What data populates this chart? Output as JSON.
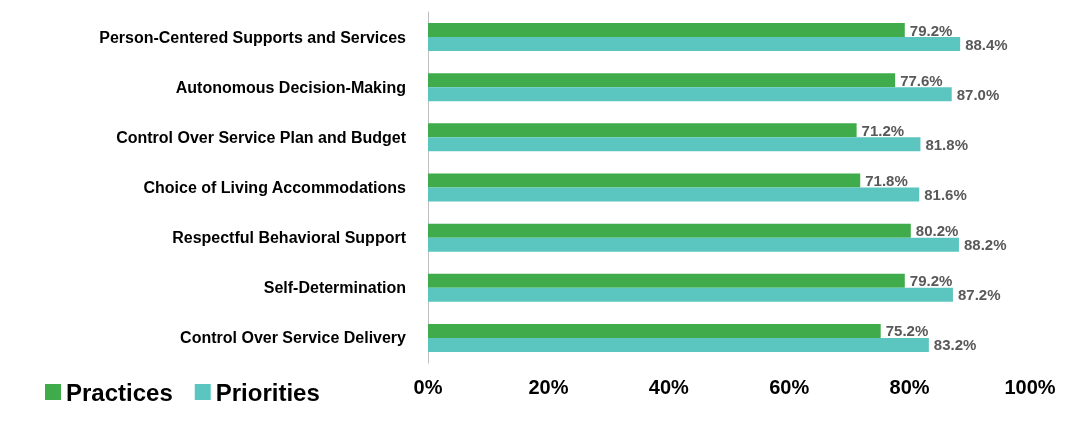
{
  "chart_data": {
    "type": "bar",
    "orientation": "horizontal",
    "categories": [
      "Person-Centered Supports and Services",
      "Autonomous Decision-Making",
      "Control Over Service Plan and Budget",
      "Choice of Living Accommodations",
      "Respectful Behavioral Support",
      "Self-Determination",
      "Control Over Service Delivery"
    ],
    "series": [
      {
        "name": "Practices",
        "color": "#3fab4b",
        "values": [
          79.2,
          77.6,
          71.2,
          71.8,
          80.2,
          79.2,
          75.2
        ],
        "value_labels": [
          "79.2%",
          "77.6%",
          "71.2%",
          "71.8%",
          "80.2%",
          "79.2%",
          "75.2%"
        ]
      },
      {
        "name": "Priorities",
        "color": "#5bc6c0",
        "values": [
          88.4,
          87.0,
          81.8,
          81.6,
          88.2,
          87.2,
          83.2
        ],
        "value_labels": [
          "88.4%",
          "87.0%",
          "81.8%",
          "81.6%",
          "88.2%",
          "87.2%",
          "83.2%"
        ]
      }
    ],
    "xlim": [
      0,
      100
    ],
    "xticks": [
      {
        "value": 0,
        "label": "0%"
      },
      {
        "value": 20,
        "label": "20%"
      },
      {
        "value": 40,
        "label": "40%"
      },
      {
        "value": 60,
        "label": "60%"
      },
      {
        "value": 80,
        "label": "80%"
      },
      {
        "value": 100,
        "label": "100%"
      }
    ],
    "grid": false,
    "legend": "bottom left"
  }
}
